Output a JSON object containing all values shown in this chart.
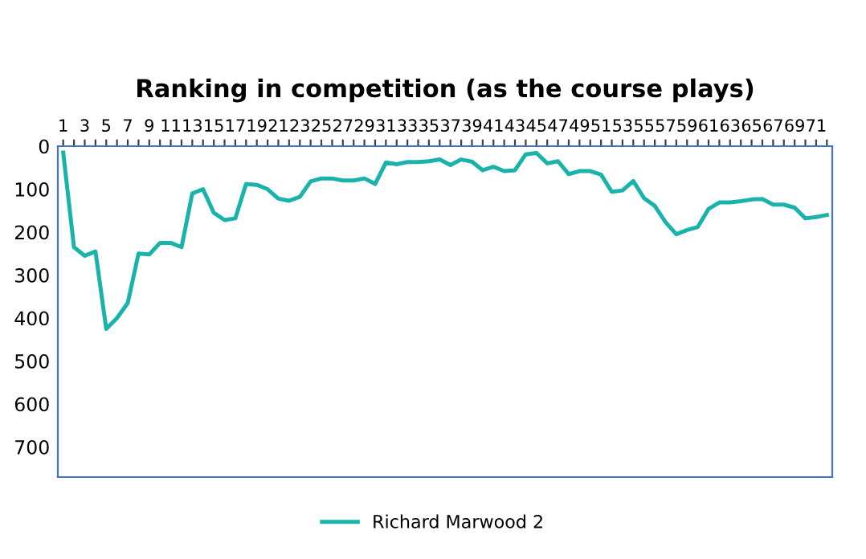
{
  "chart_data": {
    "type": "line",
    "title": "Ranking in competition (as the course plays)",
    "categories": [
      "1",
      null,
      "3",
      null,
      "5",
      null,
      "7",
      null,
      "9",
      null,
      "11",
      null,
      "13",
      null,
      "15",
      null,
      "17",
      null,
      "19",
      null,
      "21",
      null,
      "23",
      null,
      "25",
      null,
      "27",
      null,
      "29",
      null,
      "31",
      null,
      "33",
      null,
      "35",
      null,
      "37",
      null,
      "39",
      null,
      "41",
      null,
      "43",
      null,
      "45",
      null,
      "47",
      null,
      "49",
      null,
      "51",
      null,
      "53",
      null,
      "55",
      null,
      "57",
      null,
      "59",
      null,
      "61",
      null,
      "63",
      null,
      "65",
      null,
      "67",
      null,
      "69",
      null,
      "71",
      null
    ],
    "series": [
      {
        "name": "Richard Marwood 2",
        "color": "#1ab3ac",
        "values": [
          15,
          235,
          255,
          245,
          425,
          400,
          365,
          250,
          252,
          225,
          225,
          235,
          110,
          100,
          155,
          172,
          168,
          88,
          90,
          100,
          122,
          127,
          118,
          82,
          75,
          75,
          80,
          80,
          75,
          88,
          38,
          42,
          37,
          37,
          35,
          31,
          44,
          31,
          36,
          56,
          48,
          58,
          56,
          19,
          16,
          40,
          35,
          65,
          58,
          58,
          66,
          106,
          103,
          81,
          121,
          139,
          177,
          205,
          195,
          188,
          146,
          131,
          131,
          128,
          124,
          123,
          136,
          136,
          143,
          168,
          165,
          160
        ]
      }
    ],
    "ylim": [
      770,
      0
    ],
    "yticks": [
      0,
      100,
      200,
      300,
      400,
      500,
      600,
      700
    ],
    "grid": false,
    "legend": "bottom",
    "marker": "none",
    "line_style": "solid"
  }
}
